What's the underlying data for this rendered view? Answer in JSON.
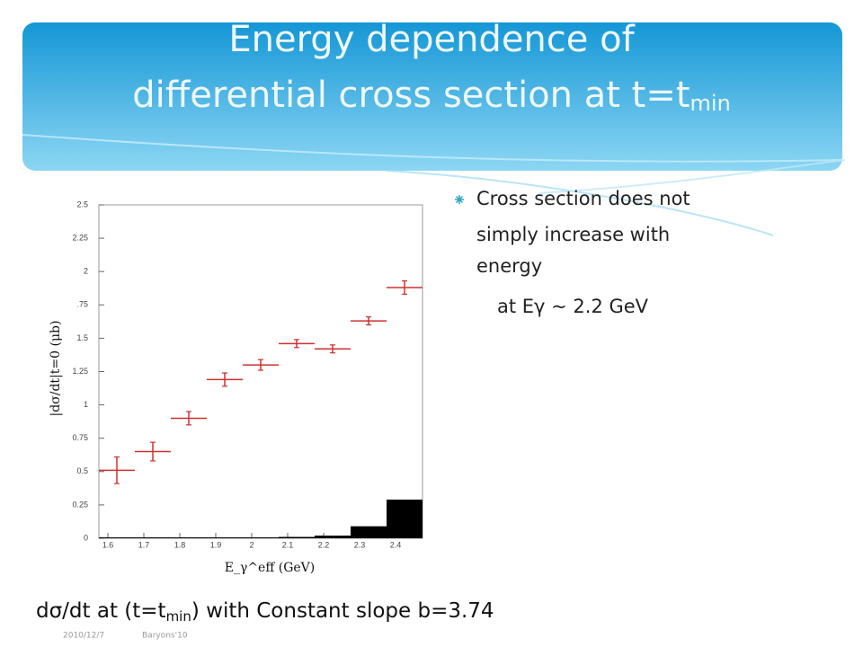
{
  "title": {
    "line1": "Energy dependence of",
    "line2": "differential cross section at t=t",
    "line2_sub": "min"
  },
  "bullet": {
    "lines": [
      "Cross section  does not",
      "simply  increase with",
      "energy"
    ],
    "sub": "at Eγ ~ 2.2 GeV"
  },
  "caption": {
    "before": "dσ/dt at (t=t",
    "sub": "min",
    "after": ") with Constant slope b=3.74"
  },
  "footer": {
    "date": "2010/12/7",
    "event": "Baryons'10"
  },
  "chart_data": {
    "type": "errorbar",
    "x_label": "E_γ^eff  (GeV)",
    "y_label": "|dσ/dt|t=0  (μb)",
    "x": [
      1.625,
      1.725,
      1.825,
      1.925,
      2.025,
      2.125,
      2.225,
      2.325,
      2.425
    ],
    "values": [
      0.51,
      0.65,
      0.9,
      1.19,
      1.3,
      1.46,
      1.42,
      1.63,
      1.88
    ],
    "xerr": [
      0.05,
      0.05,
      0.05,
      0.05,
      0.05,
      0.05,
      0.05,
      0.05,
      0.05
    ],
    "yerr": [
      0.1,
      0.07,
      0.05,
      0.05,
      0.04,
      0.03,
      0.03,
      0.03,
      0.05
    ],
    "color": "#d03030",
    "histogram": {
      "bins": [
        1.575,
        1.675,
        1.775,
        1.875,
        1.975,
        2.075,
        2.175,
        2.275,
        2.375,
        2.475
      ],
      "counts": [
        0,
        0,
        0,
        0,
        0,
        0.01,
        0.02,
        0.09,
        0.29
      ],
      "color": "#000000"
    },
    "xlim": [
      1.575,
      2.475
    ],
    "ylim": [
      0,
      2.5
    ],
    "xticks": [
      1.6,
      1.7,
      1.8,
      1.9,
      2,
      2.1,
      2.2,
      2.3,
      2.4
    ],
    "yticks": [
      0,
      0.25,
      0.5,
      0.75,
      1,
      1.25,
      1.5,
      {
        "value": 1.75,
        "label": ".75"
      },
      2,
      2.25,
      2.5
    ]
  }
}
